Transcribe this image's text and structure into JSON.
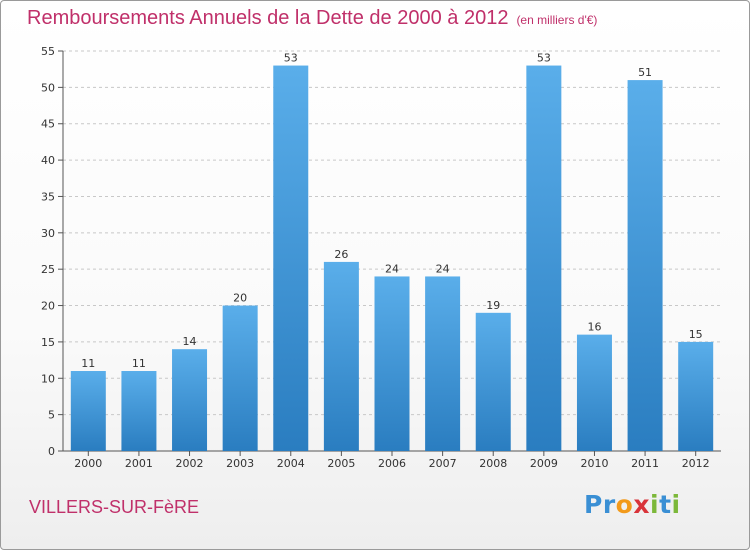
{
  "title": "Remboursements Annuels de la Dette de 2000 à 2012",
  "title_unit": "(en milliers d'€)",
  "location": "VILLERS-SUR-FèRE",
  "logo": {
    "letters": [
      {
        "ch": "P",
        "color": "#3a8fd4"
      },
      {
        "ch": "r",
        "color": "#3a8fd4"
      },
      {
        "ch": "o",
        "color": "#f29a1b"
      },
      {
        "ch": "x",
        "color": "#d9343a"
      },
      {
        "ch": "i",
        "color": "#7cb83a"
      },
      {
        "ch": "t",
        "color": "#3a8fd4"
      },
      {
        "ch": "i",
        "color": "#7cb83a"
      }
    ]
  },
  "colors": {
    "accent": "#c0306a",
    "bar_light": "#5aaeea",
    "bar_dark": "#2a7dc0"
  },
  "chart_data": {
    "type": "bar",
    "title": "Remboursements Annuels de la Dette de 2000 à 2012",
    "xlabel": "",
    "ylabel": "",
    "categories": [
      "2000",
      "2001",
      "2002",
      "2003",
      "2004",
      "2005",
      "2006",
      "2007",
      "2008",
      "2009",
      "2010",
      "2011",
      "2012"
    ],
    "values": [
      11,
      11,
      14,
      20,
      53,
      26,
      24,
      24,
      19,
      53,
      16,
      51,
      15
    ],
    "ylim": [
      0,
      55
    ],
    "yticks": [
      0,
      5,
      10,
      15,
      20,
      25,
      30,
      35,
      40,
      45,
      50,
      55
    ],
    "grid": "horizontal dashed",
    "data_labels": true
  }
}
